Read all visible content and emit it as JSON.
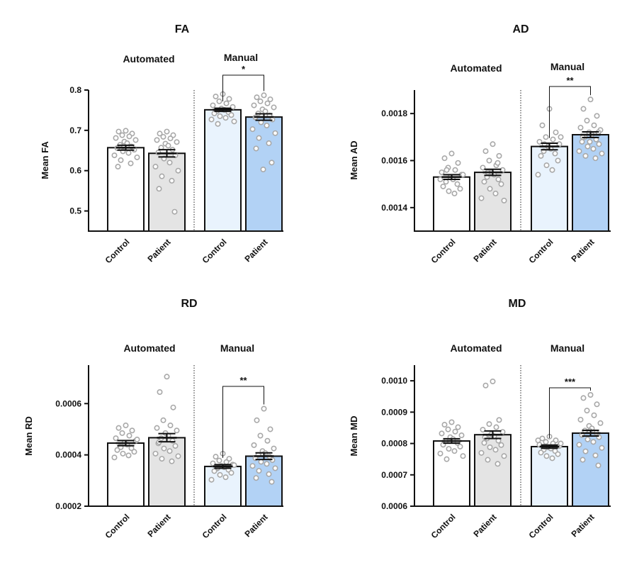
{
  "chart_data": [
    {
      "type": "bar",
      "title": "FA",
      "ylabel": "Mean FA",
      "xlabel": "",
      "ylim": [
        0.45,
        0.8
      ],
      "yticks": [
        0.5,
        0.6,
        0.7,
        0.8
      ],
      "ytick_labels": [
        "0.5",
        "0.6",
        "0.7",
        "0.8"
      ],
      "groups": [
        "Automated",
        "Manual"
      ],
      "categories": [
        "Control",
        "Patient",
        "Control",
        "Patient"
      ],
      "values": [
        0.657,
        0.643,
        0.751,
        0.733
      ],
      "sem": [
        0.006,
        0.009,
        0.004,
        0.008
      ],
      "colors": [
        "#ffffff",
        "#e4e4e4",
        "#e9f3fd",
        "#b2d2f5"
      ],
      "points": [
        [
          0.699,
          0.697,
          0.692,
          0.688,
          0.685,
          0.681,
          0.676,
          0.672,
          0.668,
          0.664,
          0.66,
          0.656,
          0.652,
          0.648,
          0.644,
          0.638,
          0.633,
          0.626,
          0.618,
          0.61
        ],
        [
          0.697,
          0.692,
          0.688,
          0.684,
          0.68,
          0.676,
          0.671,
          0.667,
          0.662,
          0.657,
          0.652,
          0.645,
          0.638,
          0.63,
          0.62,
          0.61,
          0.6,
          0.586,
          0.575,
          0.555,
          0.498
        ],
        [
          0.79,
          0.784,
          0.778,
          0.772,
          0.767,
          0.762,
          0.758,
          0.754,
          0.751,
          0.748,
          0.745,
          0.742,
          0.738,
          0.735,
          0.731,
          0.727,
          0.722,
          0.716
        ],
        [
          0.787,
          0.782,
          0.777,
          0.772,
          0.767,
          0.762,
          0.757,
          0.752,
          0.747,
          0.742,
          0.737,
          0.732,
          0.727,
          0.72,
          0.712,
          0.703,
          0.693,
          0.681,
          0.668,
          0.655,
          0.62,
          0.603
        ]
      ],
      "significance": {
        "between": [
          3,
          4
        ],
        "label": "*"
      }
    },
    {
      "type": "bar",
      "title": "AD",
      "ylabel": "Mean AD",
      "xlabel": "",
      "ylim": [
        0.0013,
        0.0019
      ],
      "yticks": [
        0.0014,
        0.0016,
        0.0018
      ],
      "ytick_labels": [
        "0.0014",
        "0.0016",
        "0.0018"
      ],
      "groups": [
        "Automated",
        "Manual"
      ],
      "categories": [
        "Control",
        "Patient",
        "Control",
        "Patient"
      ],
      "values": [
        0.00153,
        0.00155,
        0.00166,
        0.00171
      ],
      "sem": [
        1e-05,
        1.3e-05,
        1.4e-05,
        1.2e-05
      ],
      "colors": [
        "#ffffff",
        "#e4e4e4",
        "#e9f3fd",
        "#b2d2f5"
      ],
      "points": [
        [
          0.00163,
          0.00161,
          0.00159,
          0.00157,
          0.00156,
          0.00155,
          0.00154,
          0.00153,
          0.00152,
          0.00151,
          0.0015,
          0.00149,
          0.00148,
          0.00147,
          0.00146,
          0.00152,
          0.00154,
          0.00156
        ],
        [
          0.00167,
          0.00164,
          0.00162,
          0.0016,
          0.00158,
          0.00157,
          0.00156,
          0.00155,
          0.00154,
          0.00153,
          0.00152,
          0.00151,
          0.0015,
          0.00148,
          0.00146,
          0.00144,
          0.00143,
          0.00155,
          0.00159
        ],
        [
          0.00182,
          0.00175,
          0.00172,
          0.0017,
          0.00169,
          0.00168,
          0.00167,
          0.00166,
          0.00165,
          0.00164,
          0.00163,
          0.00162,
          0.0016,
          0.00158,
          0.00156,
          0.00154,
          0.0017,
          0.00167
        ],
        [
          0.00186,
          0.00182,
          0.00179,
          0.00177,
          0.00175,
          0.00174,
          0.00173,
          0.00172,
          0.00171,
          0.0017,
          0.00169,
          0.00168,
          0.00167,
          0.00166,
          0.00165,
          0.00164,
          0.00163,
          0.00162,
          0.00161,
          0.0017,
          0.00172,
          0.00168
        ]
      ],
      "significance": {
        "between": [
          3,
          4
        ],
        "label": "**"
      }
    },
    {
      "type": "bar",
      "title": "RD",
      "ylabel": "Mean RD",
      "xlabel": "",
      "ylim": [
        0.0002,
        0.00075
      ],
      "yticks": [
        0.0002,
        0.0004,
        0.0006
      ],
      "ytick_labels": [
        "0.0002",
        "0.0004",
        "0.0006"
      ],
      "groups": [
        "Automated",
        "Manual"
      ],
      "categories": [
        "Control",
        "Patient",
        "Control",
        "Patient"
      ],
      "values": [
        0.000446,
        0.000467,
        0.000355,
        0.000395
      ],
      "sem": [
        1e-05,
        1.6e-05,
        7e-06,
        1.3e-05
      ],
      "colors": [
        "#ffffff",
        "#e4e4e4",
        "#e9f3fd",
        "#b2d2f5"
      ],
      "points": [
        [
          0.000515,
          0.000505,
          0.000495,
          0.000485,
          0.000475,
          0.000465,
          0.000455,
          0.000447,
          0.00044,
          0.000433,
          0.000426,
          0.000419,
          0.000412,
          0.000405,
          0.000398,
          0.00039,
          0.00046,
          0.00043
        ],
        [
          0.000705,
          0.000645,
          0.000585,
          0.000535,
          0.000515,
          0.000505,
          0.000495,
          0.000485,
          0.000475,
          0.000465,
          0.000455,
          0.000445,
          0.000435,
          0.000425,
          0.000415,
          0.000405,
          0.000395,
          0.000385,
          0.000375,
          0.00045
        ],
        [
          0.000405,
          0.000393,
          0.000385,
          0.000378,
          0.000372,
          0.000367,
          0.000362,
          0.000357,
          0.000352,
          0.000347,
          0.000342,
          0.000337,
          0.00033,
          0.000322,
          0.000313,
          0.000303,
          0.00036,
          0.00035
        ],
        [
          0.00058,
          0.000535,
          0.0005,
          0.000475,
          0.000455,
          0.000438,
          0.000425,
          0.000415,
          0.000407,
          0.0004,
          0.000393,
          0.000387,
          0.00038,
          0.000373,
          0.000365,
          0.000357,
          0.000348,
          0.000338,
          0.000325,
          0.00031,
          0.000295,
          0.000402
        ]
      ],
      "significance": {
        "between": [
          3,
          4
        ],
        "label": "**"
      }
    },
    {
      "type": "bar",
      "title": "MD",
      "ylabel": "Mean MD",
      "xlabel": "",
      "ylim": [
        0.0006,
        0.00105
      ],
      "yticks": [
        0.0006,
        0.0007,
        0.0008,
        0.0009,
        0.001
      ],
      "ytick_labels": [
        "0.0006",
        "0.0007",
        "0.0008",
        "0.0009",
        "0.0010"
      ],
      "groups": [
        "Automated",
        "Manual"
      ],
      "categories": [
        "Control",
        "Patient",
        "Control",
        "Patient"
      ],
      "values": [
        0.000808,
        0.000828,
        0.00079,
        0.000833
      ],
      "sem": [
        7e-06,
        1.2e-05,
        5e-06,
        9e-06
      ],
      "colors": [
        "#ffffff",
        "#e4e4e4",
        "#e9f3fd",
        "#b2d2f5"
      ],
      "points": [
        [
          0.000868,
          0.00086,
          0.000852,
          0.000845,
          0.000838,
          0.000832,
          0.000826,
          0.00082,
          0.000814,
          0.000808,
          0.000802,
          0.000796,
          0.00079,
          0.000783,
          0.000776,
          0.000768,
          0.00076,
          0.00075
        ],
        [
          0.000998,
          0.000985,
          0.000875,
          0.000862,
          0.000852,
          0.000844,
          0.000837,
          0.00083,
          0.000823,
          0.000816,
          0.000809,
          0.000802,
          0.000795,
          0.000788,
          0.00078,
          0.00077,
          0.00076,
          0.000748,
          0.000735,
          0.00082
        ],
        [
          0.000822,
          0.000816,
          0.00081,
          0.000805,
          0.0008,
          0.000796,
          0.000792,
          0.000788,
          0.000784,
          0.00078,
          0.000776,
          0.000771,
          0.000766,
          0.00076,
          0.000753,
          0.00081,
          0.0008,
          0.00079
        ],
        [
          0.000955,
          0.000945,
          0.000925,
          0.000905,
          0.00089,
          0.000876,
          0.000865,
          0.000856,
          0.000848,
          0.000841,
          0.000834,
          0.000827,
          0.00082,
          0.000813,
          0.000805,
          0.000796,
          0.000786,
          0.000775,
          0.000762,
          0.000748,
          0.00073,
          0.00084
        ]
      ],
      "significance": {
        "between": [
          3,
          4
        ],
        "label": "***"
      }
    }
  ]
}
